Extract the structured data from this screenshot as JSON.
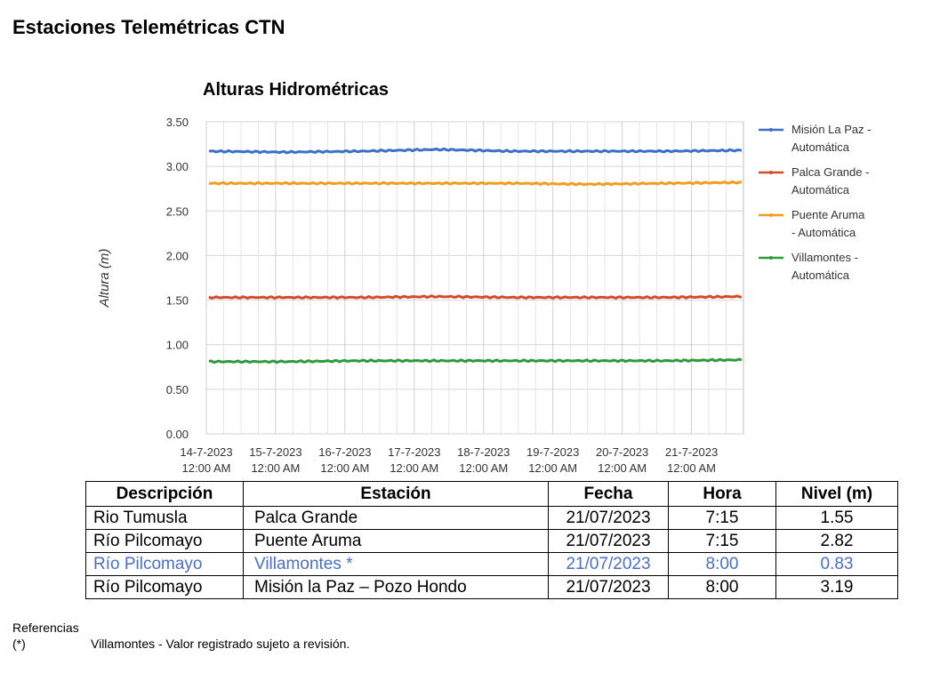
{
  "page": {
    "title": "Estaciones Telemétricas CTN"
  },
  "chart_data": {
    "type": "line",
    "title": "Alturas Hidrométricas",
    "ylabel": "Altura (m)",
    "xlabel": "",
    "ylim": [
      0,
      3.5
    ],
    "y_ticks": [
      "0.00",
      "0.50",
      "1.00",
      "1.50",
      "2.00",
      "2.50",
      "3.00",
      "3.50"
    ],
    "x_ticks": [
      {
        "date": "14-7-2023",
        "time": "12:00 AM"
      },
      {
        "date": "15-7-2023",
        "time": "12:00 AM"
      },
      {
        "date": "16-7-2023",
        "time": "12:00 AM"
      },
      {
        "date": "17-7-2023",
        "time": "12:00 AM"
      },
      {
        "date": "18-7-2023",
        "time": "12:00 AM"
      },
      {
        "date": "19-7-2023",
        "time": "12:00 AM"
      },
      {
        "date": "20-7-2023",
        "time": "12:00 AM"
      },
      {
        "date": "21-7-2023",
        "time": "12:00 AM"
      }
    ],
    "grid": true,
    "legend_position": "right",
    "series": [
      {
        "name_lines": [
          "Misión La Paz -",
          "Automática"
        ],
        "color": "#3b6fc8",
        "x": [
          "14-7-2023 12:00",
          "15-7-2023 12:00",
          "16-7-2023 12:00",
          "17-7-2023 12:00",
          "18-7-2023 12:00",
          "19-7-2023 12:00",
          "20-7-2023 12:00",
          "21-7-2023 12:00"
        ],
        "values": [
          3.17,
          3.16,
          3.17,
          3.19,
          3.17,
          3.17,
          3.17,
          3.18
        ]
      },
      {
        "name_lines": [
          "Palca Grande -",
          "Automática"
        ],
        "color": "#d24b2c",
        "x": [
          "14-7-2023 12:00",
          "15-7-2023 12:00",
          "16-7-2023 12:00",
          "17-7-2023 12:00",
          "18-7-2023 12:00",
          "19-7-2023 12:00",
          "20-7-2023 12:00",
          "21-7-2023 12:00"
        ],
        "values": [
          1.53,
          1.53,
          1.53,
          1.54,
          1.53,
          1.53,
          1.53,
          1.54
        ]
      },
      {
        "name_lines": [
          "Puente Aruma",
          "- Automática"
        ],
        "color": "#f29e1c",
        "x": [
          "14-7-2023 12:00",
          "15-7-2023 12:00",
          "16-7-2023 12:00",
          "17-7-2023 12:00",
          "18-7-2023 12:00",
          "19-7-2023 12:00",
          "20-7-2023 12:00",
          "21-7-2023 12:00"
        ],
        "values": [
          2.81,
          2.81,
          2.81,
          2.81,
          2.81,
          2.8,
          2.81,
          2.82
        ]
      },
      {
        "name_lines": [
          "Villamontes -",
          "Automática"
        ],
        "color": "#2e9a3b",
        "x": [
          "14-7-2023 12:00",
          "15-7-2023 12:00",
          "16-7-2023 12:00",
          "17-7-2023 12:00",
          "18-7-2023 12:00",
          "19-7-2023 12:00",
          "20-7-2023 12:00",
          "21-7-2023 12:00"
        ],
        "values": [
          0.81,
          0.81,
          0.82,
          0.82,
          0.82,
          0.82,
          0.82,
          0.83
        ]
      }
    ]
  },
  "table": {
    "headers": [
      "Descripción",
      "Estación",
      "Fecha",
      "Hora",
      "Nivel (m)"
    ],
    "highlight_color": "#4a6fc9",
    "rows": [
      {
        "desc": "Rio Tumusla",
        "estacion": "Palca Grande",
        "fecha": "21/07/2023",
        "hora": "7:15",
        "nivel": "1.55"
      },
      {
        "desc": "Río Pilcomayo",
        "estacion": "Puente Aruma",
        "fecha": "21/07/2023",
        "hora": "7:15",
        "nivel": "2.82"
      },
      {
        "desc": "Río Pilcomayo",
        "estacion": "Villamontes *",
        "fecha": "21/07/2023",
        "hora": "8:00",
        "nivel": "0.83"
      },
      {
        "desc": "Río Pilcomayo",
        "estacion": "Misión la Paz – Pozo Hondo",
        "fecha": "21/07/2023",
        "hora": "8:00",
        "nivel": "3.19"
      }
    ]
  },
  "references": {
    "heading": "Referencias",
    "mark": "(*)",
    "text": "Villamontes - Valor registrado sujeto a revisión."
  }
}
